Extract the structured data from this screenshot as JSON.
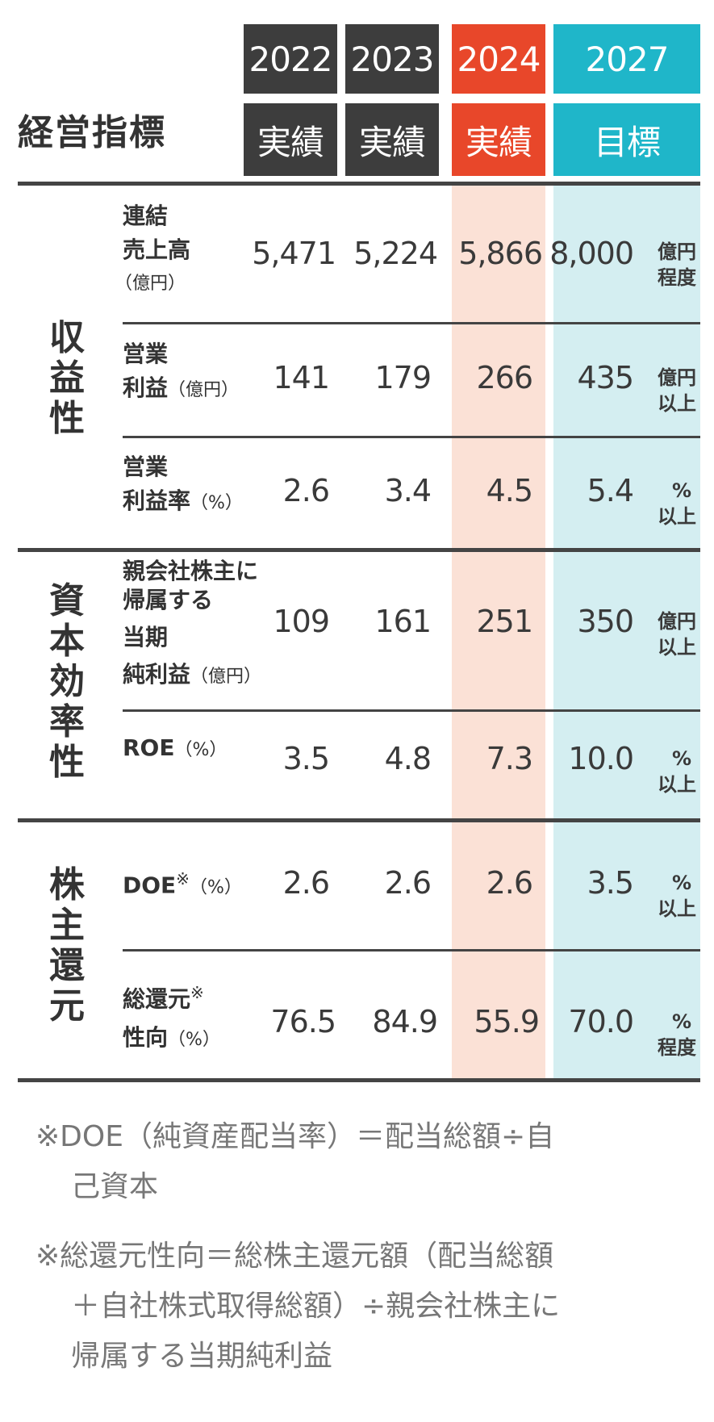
{
  "title": "経営指標",
  "columns": [
    {
      "year": "2022",
      "sub": "実績",
      "color": "#3d3d3d"
    },
    {
      "year": "2023",
      "sub": "実績",
      "color": "#3d3d3d"
    },
    {
      "year": "2024",
      "sub": "実績",
      "color": "#e8472a"
    },
    {
      "year": "2027",
      "sub": "目標",
      "color": "#1fb6c9"
    }
  ],
  "categories": {
    "profitability": "収益性",
    "capital_efficiency": "資本効率性",
    "shareholder_return": "株主還元"
  },
  "rows": [
    {
      "label1": "連結",
      "label2": "売上高",
      "label3": "（億円）",
      "v2022": "5,471",
      "v2023": "5,224",
      "v2024": "5,866",
      "target": "8,000",
      "unit1": "億円",
      "unit2": "程度"
    },
    {
      "label1": "営業",
      "label2": "利益",
      "label_unit": "（億円）",
      "v2022": "141",
      "v2023": "179",
      "v2024": "266",
      "target": "435",
      "unit1": "億円",
      "unit2": "以上"
    },
    {
      "label1": "営業",
      "label2": "利益率",
      "label_unit": "（%）",
      "v2022": "2.6",
      "v2023": "3.4",
      "v2024": "4.5",
      "target": "5.4",
      "unit1": "%",
      "unit2": "以上"
    },
    {
      "label1": "親会社株主に",
      "label2": "帰属する",
      "label3": "当期",
      "label4": "純利益",
      "label_unit": "（億円）",
      "v2022": "109",
      "v2023": "161",
      "v2024": "251",
      "target": "350",
      "unit1": "億円",
      "unit2": "以上"
    },
    {
      "label1": "ROE",
      "label_unit": "（%）",
      "v2022": "3.5",
      "v2023": "4.8",
      "v2024": "7.3",
      "target": "10.0",
      "unit1": "%",
      "unit2": "以上"
    },
    {
      "label1": "DOE",
      "mark": "※",
      "label_unit": "（%）",
      "v2022": "2.6",
      "v2023": "2.6",
      "v2024": "2.6",
      "target": "3.5",
      "unit1": "%",
      "unit2": "以上"
    },
    {
      "label1": "総還元",
      "mark": "※",
      "label2": "性向",
      "label_unit": "（%）",
      "v2022": "76.5",
      "v2023": "84.9",
      "v2024": "55.9",
      "target": "70.0",
      "unit1": "%",
      "unit2": "程度"
    }
  ],
  "notes": [
    {
      "line1": "※DOE（純資産配当率）＝配当総額÷自",
      "line2": "己資本"
    },
    {
      "line1": "※総還元性向＝総株主還元額（配当総額",
      "line2": "＋自社株式取得総額）÷親会社株主に",
      "line3": "帰属する当期純利益"
    }
  ]
}
